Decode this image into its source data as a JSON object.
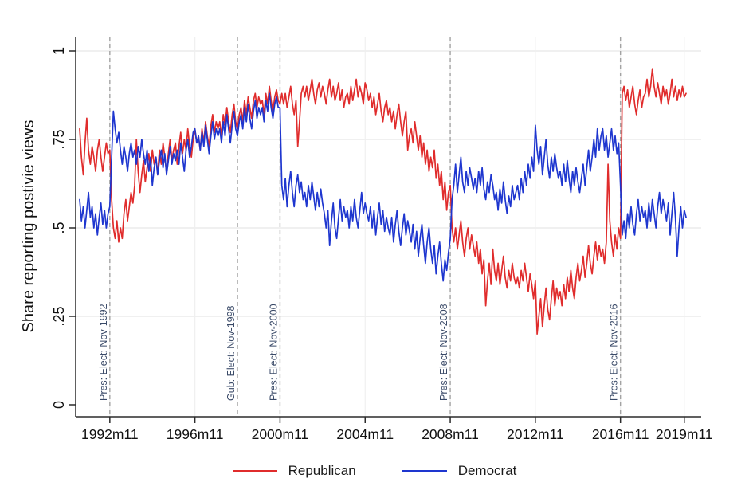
{
  "chart_data": {
    "type": "line",
    "title": "",
    "xlabel": "",
    "ylabel": "Share reporting postivie views",
    "ylim": [
      0,
      1
    ],
    "grid": true,
    "legend_position": "bottom",
    "y_ticks": [
      0,
      0.25,
      0.5,
      0.75,
      1
    ],
    "y_tick_labels": [
      "0",
      ".25",
      ".5",
      ".75",
      "1"
    ],
    "x_start": "1991m6",
    "x_end": "2019m12",
    "x_tick_month_offsets": [
      17,
      65,
      113,
      161,
      209,
      257,
      305,
      341
    ],
    "x_tick_labels": [
      "1992m11",
      "1996m11",
      "2000m11",
      "2004m11",
      "2008m11",
      "2012m11",
      "2016m11",
      "2019m11"
    ],
    "event_line_color": "#a3a3a3",
    "event_label_color": "#3a4a68",
    "event_lines": [
      {
        "label": "Pres: Elect: Nov-1992",
        "month_offset": 17
      },
      {
        "label": "Gub: Elect: Nov-1998",
        "month_offset": 89
      },
      {
        "label": "Pres: Elect: Nov-2000",
        "month_offset": 113
      },
      {
        "label": "Pres: Elect: Nov-2008",
        "month_offset": 209
      },
      {
        "label": "Pres: Elect: Nov-2016",
        "month_offset": 305
      }
    ],
    "series": [
      {
        "name": "Republican",
        "color": "#e02c2c",
        "values": [
          0.78,
          0.7,
          0.65,
          0.74,
          0.81,
          0.72,
          0.68,
          0.73,
          0.7,
          0.66,
          0.72,
          0.75,
          0.7,
          0.66,
          0.7,
          0.74,
          0.71,
          0.72,
          0.58,
          0.5,
          0.47,
          0.52,
          0.46,
          0.5,
          0.47,
          0.54,
          0.58,
          0.52,
          0.56,
          0.6,
          0.57,
          0.62,
          0.75,
          0.66,
          0.6,
          0.65,
          0.69,
          0.63,
          0.67,
          0.71,
          0.66,
          0.72,
          0.68,
          0.7,
          0.65,
          0.72,
          0.68,
          0.74,
          0.7,
          0.66,
          0.71,
          0.75,
          0.69,
          0.72,
          0.74,
          0.68,
          0.73,
          0.77,
          0.71,
          0.75,
          0.72,
          0.78,
          0.73,
          0.7,
          0.75,
          0.78,
          0.74,
          0.76,
          0.72,
          0.78,
          0.74,
          0.8,
          0.76,
          0.73,
          0.79,
          0.82,
          0.77,
          0.8,
          0.78,
          0.8,
          0.76,
          0.82,
          0.79,
          0.84,
          0.8,
          0.77,
          0.82,
          0.85,
          0.8,
          0.78,
          0.82,
          0.84,
          0.8,
          0.86,
          0.82,
          0.87,
          0.84,
          0.81,
          0.86,
          0.88,
          0.84,
          0.87,
          0.85,
          0.86,
          0.82,
          0.88,
          0.85,
          0.9,
          0.86,
          0.83,
          0.87,
          0.89,
          0.86,
          0.85,
          0.88,
          0.85,
          0.88,
          0.84,
          0.87,
          0.9,
          0.85,
          0.82,
          0.86,
          0.73,
          0.8,
          0.88,
          0.9,
          0.87,
          0.9,
          0.86,
          0.89,
          0.92,
          0.88,
          0.85,
          0.89,
          0.91,
          0.87,
          0.9,
          0.88,
          0.85,
          0.89,
          0.92,
          0.87,
          0.9,
          0.86,
          0.88,
          0.91,
          0.86,
          0.89,
          0.84,
          0.87,
          0.88,
          0.85,
          0.9,
          0.86,
          0.89,
          0.92,
          0.87,
          0.9,
          0.88,
          0.85,
          0.91,
          0.89,
          0.86,
          0.88,
          0.84,
          0.87,
          0.82,
          0.85,
          0.88,
          0.83,
          0.8,
          0.84,
          0.86,
          0.82,
          0.84,
          0.8,
          0.83,
          0.78,
          0.82,
          0.85,
          0.8,
          0.76,
          0.8,
          0.83,
          0.72,
          0.76,
          0.78,
          0.74,
          0.8,
          0.76,
          0.72,
          0.76,
          0.7,
          0.74,
          0.68,
          0.72,
          0.66,
          0.7,
          0.67,
          0.72,
          0.64,
          0.68,
          0.62,
          0.66,
          0.58,
          0.63,
          0.55,
          0.6,
          0.62,
          0.5,
          0.46,
          0.5,
          0.44,
          0.48,
          0.52,
          0.46,
          0.42,
          0.47,
          0.5,
          0.44,
          0.48,
          0.45,
          0.42,
          0.46,
          0.4,
          0.44,
          0.37,
          0.41,
          0.28,
          0.35,
          0.4,
          0.34,
          0.44,
          0.38,
          0.35,
          0.4,
          0.34,
          0.38,
          0.42,
          0.36,
          0.33,
          0.38,
          0.35,
          0.4,
          0.36,
          0.34,
          0.36,
          0.33,
          0.38,
          0.35,
          0.4,
          0.36,
          0.32,
          0.37,
          0.34,
          0.3,
          0.35,
          0.2,
          0.25,
          0.3,
          0.22,
          0.28,
          0.33,
          0.27,
          0.24,
          0.3,
          0.35,
          0.28,
          0.33,
          0.3,
          0.32,
          0.28,
          0.34,
          0.3,
          0.36,
          0.32,
          0.38,
          0.33,
          0.3,
          0.36,
          0.4,
          0.35,
          0.38,
          0.42,
          0.36,
          0.4,
          0.45,
          0.4,
          0.37,
          0.42,
          0.46,
          0.41,
          0.45,
          0.42,
          0.44,
          0.4,
          0.46,
          0.68,
          0.52,
          0.46,
          0.42,
          0.48,
          0.44,
          0.5,
          0.47,
          0.88,
          0.9,
          0.86,
          0.89,
          0.84,
          0.87,
          0.9,
          0.85,
          0.82,
          0.86,
          0.89,
          0.84,
          0.87,
          0.88,
          0.92,
          0.87,
          0.9,
          0.95,
          0.9,
          0.87,
          0.91,
          0.88,
          0.85,
          0.9,
          0.87,
          0.89,
          0.85,
          0.88,
          0.92,
          0.87,
          0.9,
          0.86,
          0.89,
          0.87,
          0.9,
          0.87,
          0.88
        ]
      },
      {
        "name": "Democrat",
        "color": "#1e36cf",
        "values": [
          0.58,
          0.52,
          0.56,
          0.5,
          0.55,
          0.6,
          0.53,
          0.56,
          0.5,
          0.54,
          0.48,
          0.53,
          0.57,
          0.51,
          0.55,
          0.5,
          0.54,
          0.56,
          0.7,
          0.83,
          0.78,
          0.74,
          0.77,
          0.72,
          0.68,
          0.73,
          0.7,
          0.66,
          0.71,
          0.74,
          0.7,
          0.72,
          0.68,
          0.73,
          0.7,
          0.75,
          0.71,
          0.68,
          0.72,
          0.66,
          0.7,
          0.62,
          0.67,
          0.7,
          0.65,
          0.69,
          0.72,
          0.67,
          0.71,
          0.65,
          0.69,
          0.73,
          0.68,
          0.71,
          0.69,
          0.72,
          0.68,
          0.74,
          0.7,
          0.66,
          0.72,
          0.75,
          0.7,
          0.73,
          0.77,
          0.78,
          0.74,
          0.76,
          0.72,
          0.77,
          0.73,
          0.79,
          0.75,
          0.71,
          0.76,
          0.8,
          0.75,
          0.78,
          0.76,
          0.78,
          0.74,
          0.8,
          0.76,
          0.82,
          0.78,
          0.74,
          0.79,
          0.83,
          0.78,
          0.76,
          0.8,
          0.82,
          0.78,
          0.84,
          0.8,
          0.85,
          0.81,
          0.78,
          0.83,
          0.86,
          0.81,
          0.84,
          0.82,
          0.84,
          0.8,
          0.86,
          0.83,
          0.88,
          0.84,
          0.81,
          0.85,
          0.87,
          0.84,
          0.84,
          0.62,
          0.58,
          0.64,
          0.56,
          0.62,
          0.66,
          0.6,
          0.56,
          0.62,
          0.65,
          0.6,
          0.63,
          0.58,
          0.6,
          0.56,
          0.62,
          0.58,
          0.63,
          0.59,
          0.55,
          0.6,
          0.56,
          0.61,
          0.57,
          0.54,
          0.5,
          0.55,
          0.45,
          0.52,
          0.57,
          0.5,
          0.47,
          0.53,
          0.58,
          0.52,
          0.56,
          0.53,
          0.55,
          0.5,
          0.56,
          0.52,
          0.58,
          0.53,
          0.5,
          0.55,
          0.6,
          0.54,
          0.57,
          0.54,
          0.52,
          0.56,
          0.5,
          0.55,
          0.48,
          0.53,
          0.57,
          0.51,
          0.55,
          0.49,
          0.53,
          0.5,
          0.48,
          0.53,
          0.46,
          0.51,
          0.55,
          0.49,
          0.45,
          0.5,
          0.54,
          0.48,
          0.52,
          0.49,
          0.46,
          0.51,
          0.44,
          0.49,
          0.42,
          0.47,
          0.51,
          0.45,
          0.4,
          0.46,
          0.5,
          0.44,
          0.4,
          0.45,
          0.37,
          0.42,
          0.46,
          0.4,
          0.35,
          0.41,
          0.38,
          0.43,
          0.47,
          0.58,
          0.62,
          0.68,
          0.6,
          0.65,
          0.7,
          0.63,
          0.6,
          0.66,
          0.62,
          0.67,
          0.64,
          0.61,
          0.64,
          0.6,
          0.66,
          0.62,
          0.67,
          0.61,
          0.58,
          0.63,
          0.6,
          0.65,
          0.62,
          0.58,
          0.6,
          0.55,
          0.61,
          0.57,
          0.63,
          0.58,
          0.54,
          0.59,
          0.56,
          0.62,
          0.58,
          0.6,
          0.62,
          0.58,
          0.64,
          0.6,
          0.66,
          0.62,
          0.68,
          0.64,
          0.7,
          0.66,
          0.79,
          0.72,
          0.68,
          0.73,
          0.65,
          0.7,
          0.75,
          0.68,
          0.64,
          0.7,
          0.66,
          0.71,
          0.67,
          0.64,
          0.66,
          0.62,
          0.68,
          0.63,
          0.69,
          0.64,
          0.6,
          0.66,
          0.62,
          0.67,
          0.63,
          0.6,
          0.64,
          0.68,
          0.62,
          0.67,
          0.72,
          0.66,
          0.7,
          0.75,
          0.7,
          0.78,
          0.72,
          0.76,
          0.78,
          0.72,
          0.76,
          0.7,
          0.74,
          0.78,
          0.72,
          0.76,
          0.71,
          0.74,
          0.62,
          0.48,
          0.52,
          0.47,
          0.54,
          0.5,
          0.56,
          0.51,
          0.48,
          0.54,
          0.58,
          0.52,
          0.56,
          0.53,
          0.55,
          0.5,
          0.57,
          0.52,
          0.58,
          0.54,
          0.5,
          0.56,
          0.6,
          0.54,
          0.58,
          0.55,
          0.52,
          0.57,
          0.48,
          0.54,
          0.6,
          0.53,
          0.42,
          0.5,
          0.56,
          0.5,
          0.55,
          0.53
        ]
      }
    ]
  },
  "legend": {
    "items": [
      {
        "label": "Republican"
      },
      {
        "label": "Democrat"
      }
    ]
  }
}
